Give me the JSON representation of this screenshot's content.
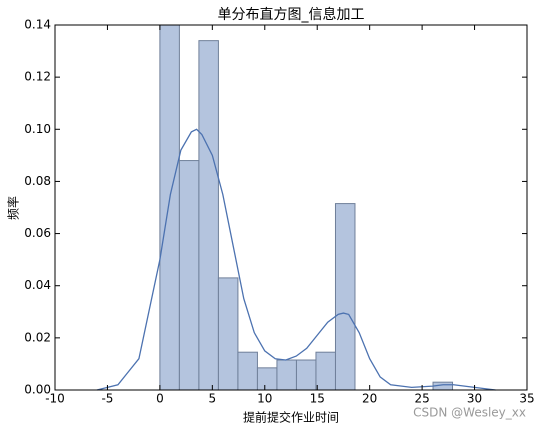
{
  "chart_data": {
    "type": "histogram",
    "title": "单分布直方图_信息加工",
    "xlabel": "提前提交作业时间",
    "ylabel": "频率",
    "watermark": "CSDN @Wesley_xx",
    "bins": [
      0,
      1.86,
      3.72,
      5.58,
      7.44,
      9.3,
      11.16,
      13.02,
      14.88,
      16.74,
      18.6,
      20.46,
      22.32,
      24.18,
      26.04,
      27.9
    ],
    "counts": [
      0.14,
      0.088,
      0.134,
      0.043,
      0.0145,
      0.0085,
      0.0115,
      0.0115,
      0.0145,
      0.0715,
      0,
      0,
      0,
      0,
      0.003
    ],
    "color": "#b4c4de",
    "kde": {
      "color": "#4c72b0",
      "x": [
        -6,
        -4,
        -2,
        0,
        1,
        2,
        3,
        3.5,
        4,
        5,
        6,
        7,
        8,
        9,
        10,
        11,
        12,
        13,
        14,
        15,
        16,
        17,
        17.5,
        18,
        19,
        20,
        21,
        22,
        24,
        26,
        27,
        28,
        30,
        32
      ],
      "values": [
        0,
        0.002,
        0.012,
        0.05,
        0.075,
        0.092,
        0.099,
        0.1,
        0.098,
        0.09,
        0.075,
        0.055,
        0.035,
        0.022,
        0.015,
        0.012,
        0.0115,
        0.013,
        0.016,
        0.021,
        0.026,
        0.029,
        0.0295,
        0.029,
        0.022,
        0.012,
        0.005,
        0.002,
        0.001,
        0.0015,
        0.002,
        0.002,
        0.001,
        0
      ]
    },
    "xlim": [
      -10,
      35
    ],
    "xticks": [
      -10,
      -5,
      0,
      5,
      10,
      15,
      20,
      25,
      30,
      35
    ],
    "ylim": [
      0,
      0.14
    ],
    "yticks": [
      {
        "value": 0,
        "label": "0.00"
      },
      {
        "value": 0.02,
        "label": "0.02"
      },
      {
        "value": 0.04,
        "label": "0.04"
      },
      {
        "value": 0.06,
        "label": "0.06"
      },
      {
        "value": 0.08,
        "label": "0.08"
      },
      {
        "value": 0.1,
        "label": "0.10"
      },
      {
        "value": 0.12,
        "label": "0.12"
      },
      {
        "value": 0.14,
        "label": "0.14"
      }
    ]
  }
}
